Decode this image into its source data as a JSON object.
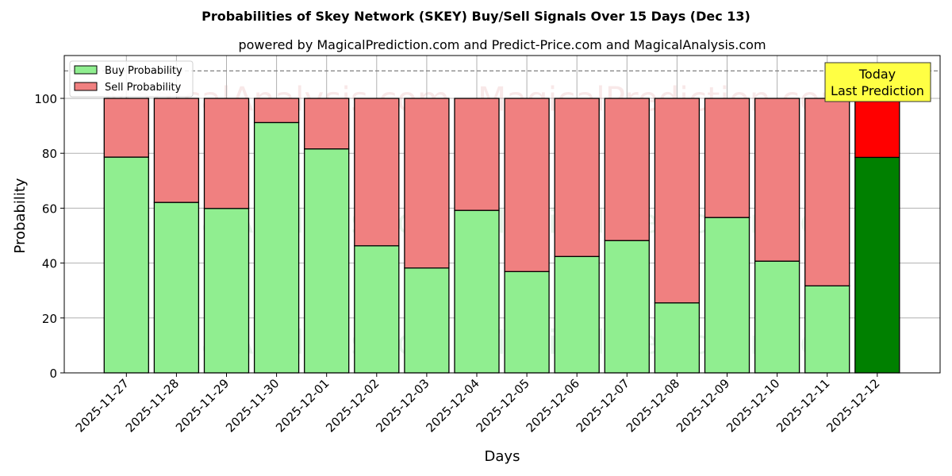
{
  "chart_data": {
    "type": "bar",
    "stacked": true,
    "title": "Probabilities of Skey Network (SKEY) Buy/Sell Signals Over 15 Days (Dec 13)",
    "subtitle": "powered by MagicalPrediction.com and Predict-Price.com and MagicalAnalysis.com",
    "xlabel": "Days",
    "ylabel": "Probability",
    "ylim": [
      0,
      115
    ],
    "yticks": [
      0,
      20,
      40,
      60,
      80,
      100
    ],
    "grid": true,
    "legend_position": "upper left",
    "reference_line": {
      "y": 110,
      "style": "dashed",
      "color": "#808080"
    },
    "categories": [
      "2025-11-27",
      "2025-11-28",
      "2025-11-29",
      "2025-11-30",
      "2025-12-01",
      "2025-12-02",
      "2025-12-03",
      "2025-12-04",
      "2025-12-05",
      "2025-12-06",
      "2025-12-07",
      "2025-12-08",
      "2025-12-09",
      "2025-12-10",
      "2025-12-11",
      "2025-12-12"
    ],
    "series": [
      {
        "name": "Buy Probability",
        "color": "#90ee90",
        "values": [
          78.6,
          62.1,
          59.9,
          91.2,
          81.6,
          46.3,
          38.2,
          59.2,
          36.9,
          42.4,
          48.2,
          25.5,
          56.6,
          40.7,
          31.7,
          78.5
        ]
      },
      {
        "name": "Sell Probability",
        "color": "#f08080",
        "values": [
          21.4,
          37.9,
          40.1,
          8.8,
          18.4,
          53.7,
          61.8,
          40.8,
          63.1,
          57.6,
          51.8,
          74.5,
          43.4,
          59.3,
          68.3,
          21.5
        ]
      }
    ],
    "highlight": {
      "index": 15,
      "buy_color": "#008000",
      "sell_color": "#ff0000"
    },
    "annotation": {
      "lines": [
        "Today",
        "Last Prediction"
      ],
      "background": "#ffff44"
    }
  },
  "watermarks": [
    "MagicalAnalysis.com",
    "MagicalPrediction.com"
  ]
}
